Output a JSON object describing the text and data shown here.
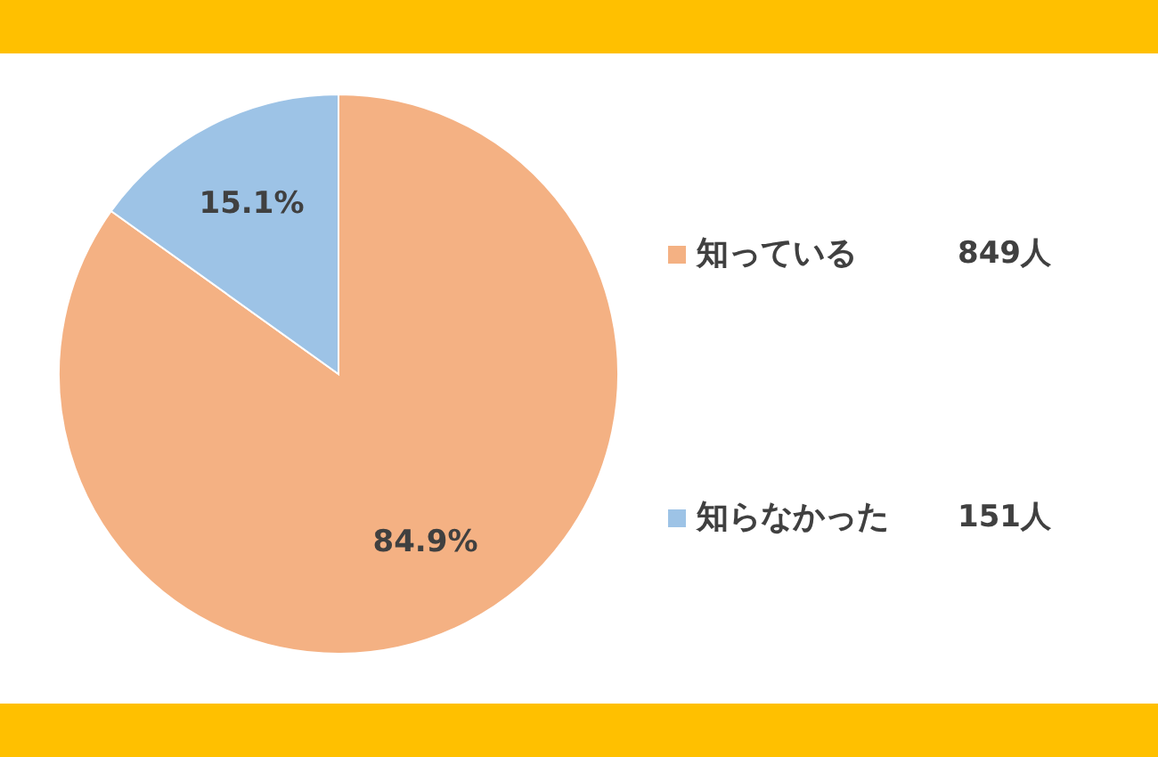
{
  "chart_data": {
    "type": "pie",
    "categories": [
      "知っている",
      "知らなかった"
    ],
    "values": [
      84.9,
      15.1
    ],
    "colors": [
      "#f4b183",
      "#9dc3e6"
    ],
    "value_labels": [
      "84.9%",
      "15.1%"
    ],
    "annotations": [
      "849人",
      "151人"
    ],
    "legend": "right"
  }
}
